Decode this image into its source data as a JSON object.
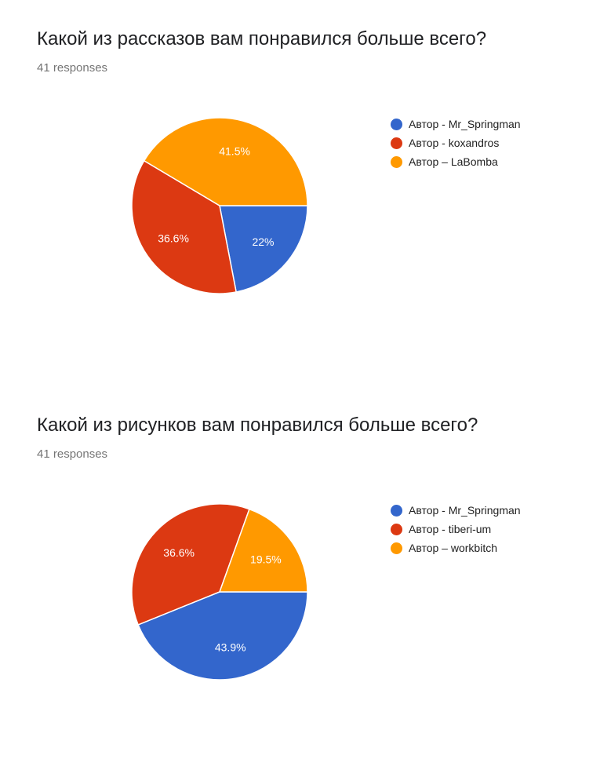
{
  "chart_data": [
    {
      "type": "pie",
      "title": "Какой из рассказов вам понравился больше всего?",
      "subtitle": "41 responses",
      "legend_position": "right",
      "slices": [
        {
          "label": "Автор - Mr_Springman",
          "value": 22,
          "display": "22%",
          "color": "#3366cc"
        },
        {
          "label": "Автор - koxandros",
          "value": 36.6,
          "display": "36.6%",
          "color": "#dc3912"
        },
        {
          "label": "Автор – LaBomba",
          "value": 41.5,
          "display": "41.5%",
          "color": "#ff9900"
        }
      ]
    },
    {
      "type": "pie",
      "title": "Какой из рисунков вам понравился больше всего?",
      "subtitle": "41 responses",
      "legend_position": "right",
      "slices": [
        {
          "label": "Автор - Mr_Springman",
          "value": 43.9,
          "display": "43.9%",
          "color": "#3366cc"
        },
        {
          "label": "Автор - tiberi-um",
          "value": 36.6,
          "display": "36.6%",
          "color": "#dc3912"
        },
        {
          "label": "Автор – workbitch",
          "value": 19.5,
          "display": "19.5%",
          "color": "#ff9900"
        }
      ]
    }
  ]
}
